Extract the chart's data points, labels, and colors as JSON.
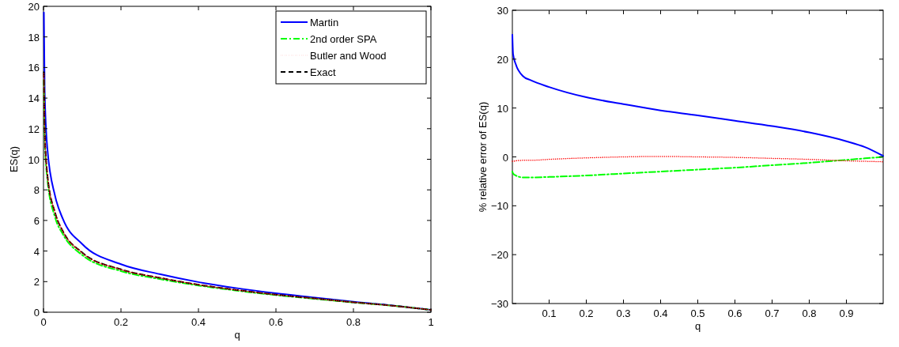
{
  "chart_data": [
    {
      "type": "line",
      "xlabel": "q",
      "ylabel": "ES(q)",
      "xlim": [
        0,
        1
      ],
      "ylim": [
        0,
        20
      ],
      "xticks": [
        0,
        0.2,
        0.4,
        0.6,
        0.8,
        1
      ],
      "yticks": [
        0,
        2,
        4,
        6,
        8,
        10,
        12,
        14,
        16,
        18,
        20
      ],
      "legend": "top right",
      "grid": false,
      "x": [
        0.001,
        0.003,
        0.01,
        0.03,
        0.05,
        0.1,
        0.2,
        0.3,
        0.4,
        0.5,
        0.6,
        0.7,
        0.8,
        0.9,
        1
      ],
      "series": [
        {
          "name": "Martin",
          "color": "#0000ff",
          "line_style": "solid",
          "values": [
            19.6,
            14.5,
            10.7,
            7.6,
            6.1,
            4.46,
            3.14,
            2.49,
            1.97,
            1.57,
            1.24,
            0.96,
            0.68,
            0.44,
            0.15
          ]
        },
        {
          "name": "2nd order SPA",
          "color": "#00ff00",
          "line_style": "dashdot",
          "values": [
            15.2,
            11.6,
            8.7,
            6.2,
            5.1,
            3.74,
            2.69,
            2.17,
            1.75,
            1.41,
            1.12,
            0.88,
            0.64,
            0.43,
            0.15
          ]
        },
        {
          "name": "Butler and Wood",
          "color": "#ff0000",
          "line_style": "dotted",
          "values": [
            15.6,
            11.9,
            9.0,
            6.5,
            5.3,
            3.88,
            2.79,
            2.25,
            1.8,
            1.45,
            1.15,
            0.9,
            0.65,
            0.43,
            0.15
          ]
        },
        {
          "name": "Exact",
          "color": "#000000",
          "line_style": "dashed",
          "values": [
            15.7,
            12,
            9,
            6.5,
            5.3,
            3.9,
            2.8,
            2.25,
            1.8,
            1.45,
            1.15,
            0.9,
            0.65,
            0.43,
            0.15
          ]
        }
      ]
    },
    {
      "type": "line",
      "xlabel": "q",
      "ylabel": "% relative error of ES(q)",
      "xlim": [
        0.001,
        0.999
      ],
      "ylim": [
        -30,
        30
      ],
      "xticks": [
        0.1,
        0.2,
        0.3,
        0.4,
        0.5,
        0.6,
        0.7,
        0.8,
        0.9
      ],
      "yticks": [
        -30,
        -20,
        -10,
        0,
        10,
        20,
        30
      ],
      "grid": false,
      "x": [
        0.001,
        0.003,
        0.01,
        0.03,
        0.05,
        0.1,
        0.2,
        0.3,
        0.4,
        0.5,
        0.6,
        0.7,
        0.8,
        0.9,
        0.95,
        0.999
      ],
      "series": [
        {
          "color": "#0000ff",
          "line_style": "solid",
          "values": [
            25,
            21,
            19,
            16.5,
            15.7,
            14.3,
            12.2,
            10.8,
            9.5,
            8.5,
            7.4,
            6.3,
            5.0,
            3.2,
            2,
            0.2
          ]
        },
        {
          "color": "#00ff00",
          "line_style": "dashdot",
          "values": [
            -3,
            -3.4,
            -3.8,
            -4.2,
            -4.2,
            -4.1,
            -3.8,
            -3.4,
            -3.0,
            -2.6,
            -2.2,
            -1.7,
            -1.2,
            -0.6,
            -0.3,
            0
          ]
        },
        {
          "color": "#ff0000",
          "line_style": "dotted",
          "values": [
            -0.9,
            -0.9,
            -0.8,
            -0.7,
            -0.7,
            -0.5,
            -0.2,
            0,
            0.1,
            0,
            -0.1,
            -0.3,
            -0.5,
            -0.8,
            -0.9,
            -1.0
          ]
        }
      ]
    }
  ]
}
